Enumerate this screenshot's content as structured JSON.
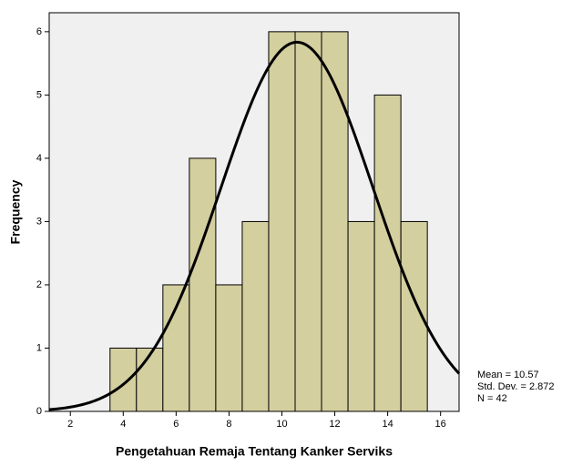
{
  "chart_data": {
    "type": "histogram",
    "xlabel": "Pengetahuan Remaja Tentang Kanker Serviks",
    "ylabel": "Frequency",
    "bins": [
      3.5,
      4.5,
      5.5,
      6.5,
      7.5,
      8.5,
      9.5,
      10.5,
      11.5,
      12.5,
      13.5,
      14.5,
      15.5
    ],
    "counts": [
      1,
      1,
      2,
      4,
      2,
      3,
      6,
      6,
      6,
      3,
      5,
      3
    ],
    "color": "#d4cf9f",
    "xlim": [
      1.2,
      16.7
    ],
    "xticks": [
      2,
      4,
      6,
      8,
      10,
      12,
      14,
      16
    ],
    "ylim": [
      0,
      6.3
    ],
    "yticks": [
      0,
      1,
      2,
      3,
      4,
      5,
      6
    ],
    "normal_curve": true,
    "stats": [
      {
        "value": 10.57,
        "label": "Mean = 10.57"
      },
      {
        "value": 2.872,
        "label": "Std. Dev. = 2.872"
      },
      {
        "value": 42,
        "label": "N = 42"
      }
    ]
  }
}
